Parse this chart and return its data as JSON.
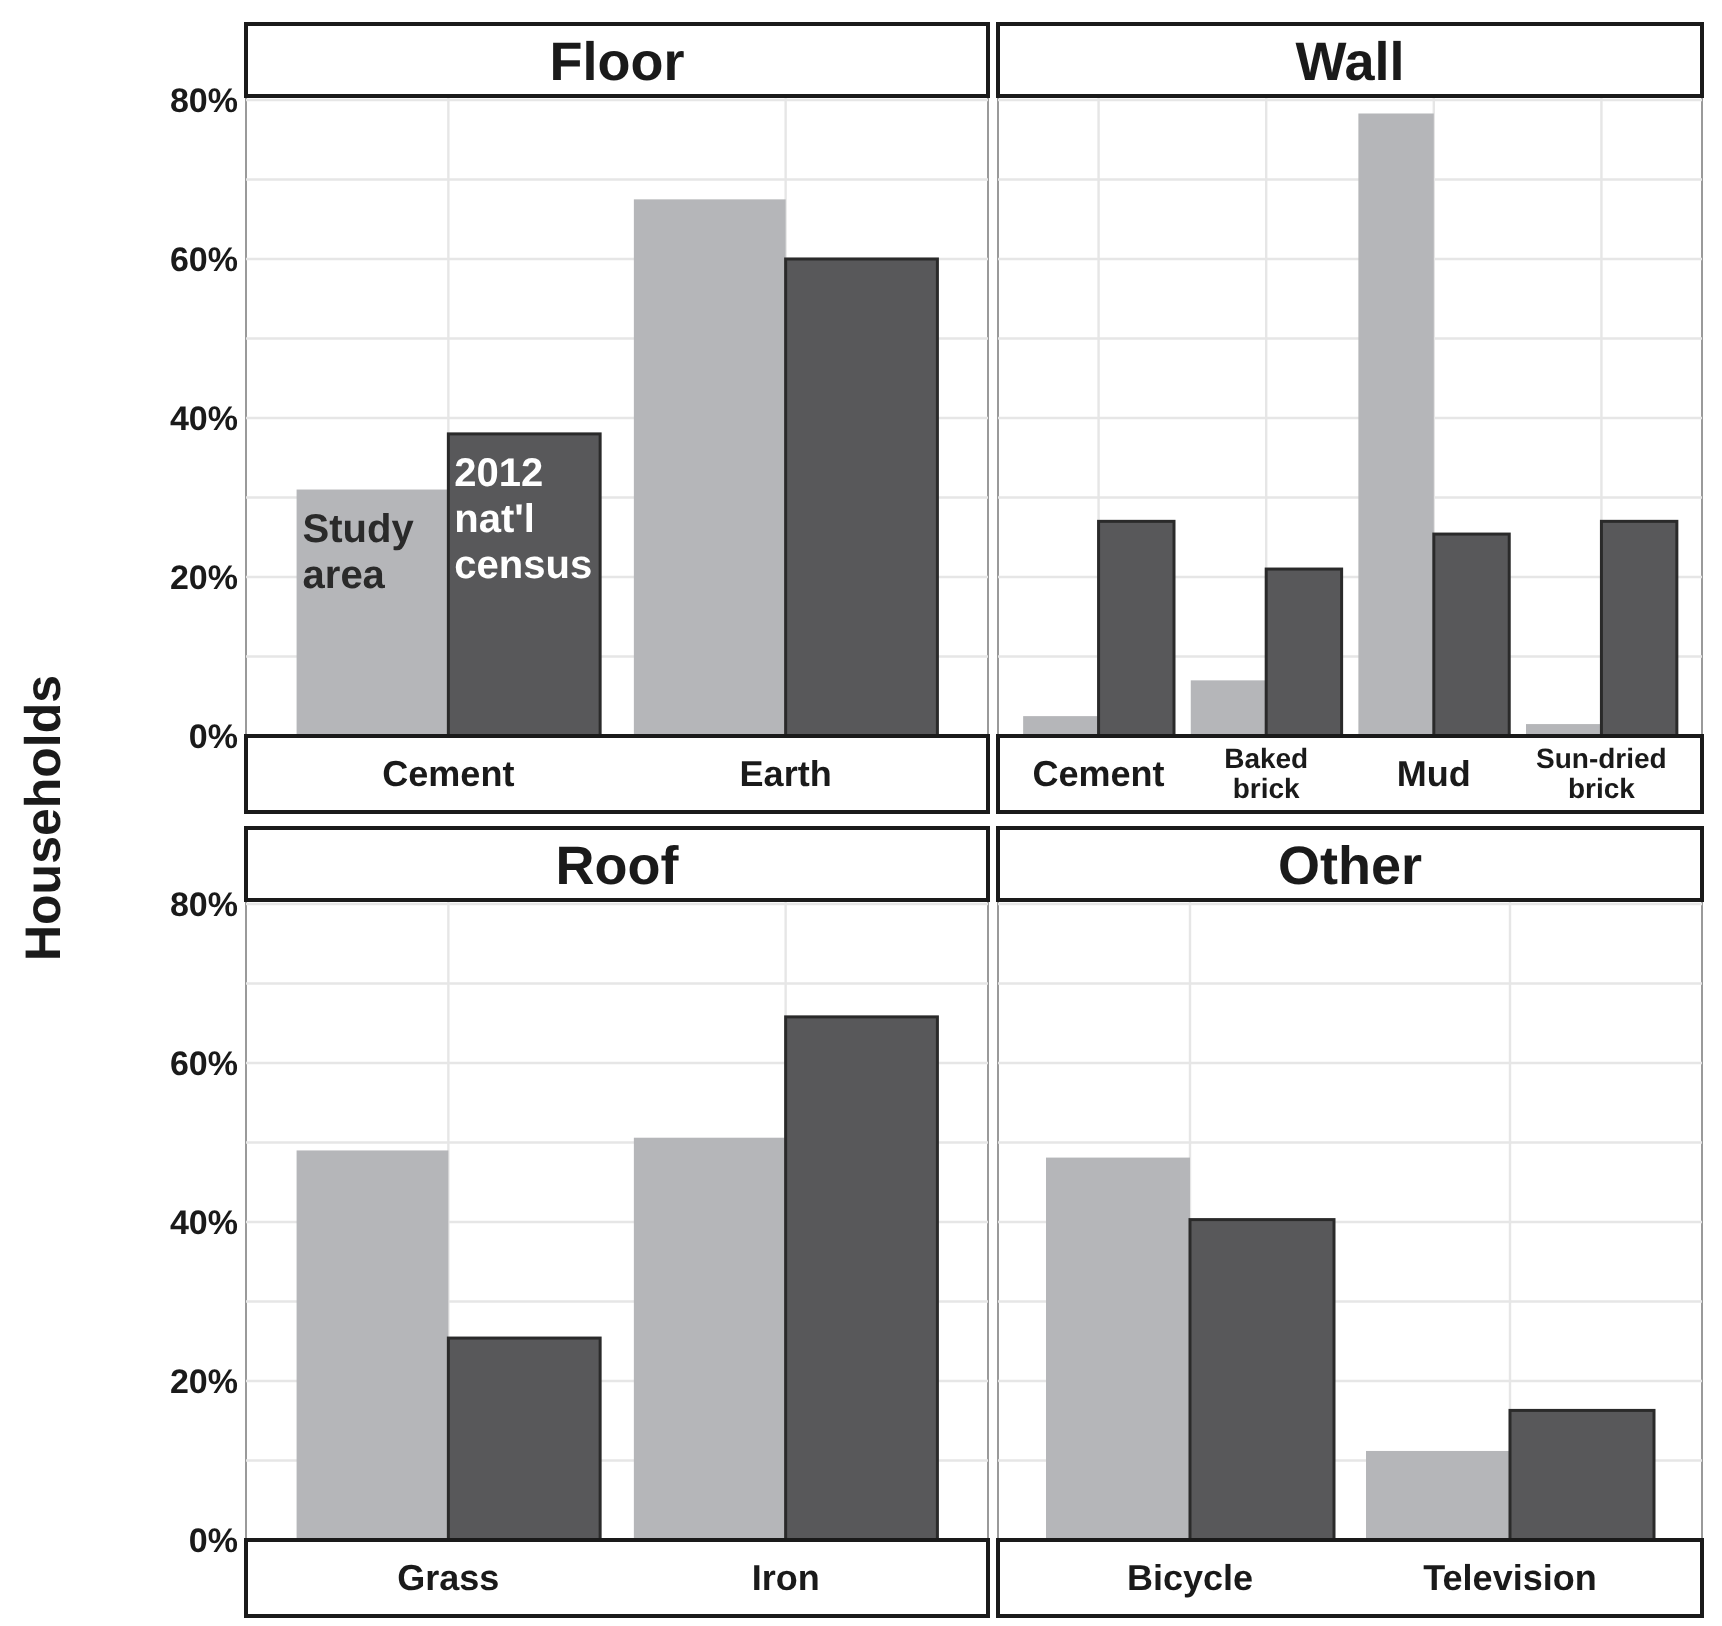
{
  "chart_data": [
    {
      "type": "bar",
      "title": "Floor",
      "ylabel": "Households",
      "categories": [
        "Cement",
        "Earth"
      ],
      "series": [
        {
          "name": "Study area",
          "color": "#b5b6b9",
          "values": [
            31,
            67.5
          ]
        },
        {
          "name": "2012 nat'l census",
          "color": "#58585a",
          "values": [
            38,
            60
          ]
        }
      ],
      "ylim": [
        0,
        80.5
      ],
      "yticks": [
        {
          "value": 0,
          "label": "0%"
        },
        {
          "value": 10,
          "label": null
        },
        {
          "value": 20,
          "label": "20%"
        },
        {
          "value": 30,
          "label": null
        },
        {
          "value": 40,
          "label": "40%"
        },
        {
          "value": 50,
          "label": null
        },
        {
          "value": 60,
          "label": "60%"
        },
        {
          "value": 70,
          "label": null
        },
        {
          "value": 80,
          "label": "80%"
        }
      ],
      "grid": true
    },
    {
      "type": "bar",
      "title": "Wall",
      "categories": [
        "Cement",
        "Baked brick",
        "Mud",
        "Sun-dried brick"
      ],
      "series": [
        {
          "color": "#b5b6b9",
          "values": [
            2.5,
            7,
            78.3,
            1.5
          ]
        },
        {
          "color": "#58585a",
          "values": [
            27,
            21,
            25.4,
            27
          ]
        }
      ],
      "ylim": [
        0,
        80.5
      ],
      "yticks": [
        {
          "value": 0,
          "label": null
        },
        {
          "value": 10,
          "label": null
        },
        {
          "value": 20,
          "label": null
        },
        {
          "value": 30,
          "label": null
        },
        {
          "value": 40,
          "label": null
        },
        {
          "value": 50,
          "label": null
        },
        {
          "value": 60,
          "label": null
        },
        {
          "value": 70,
          "label": null
        },
        {
          "value": 80,
          "label": null
        }
      ],
      "grid": true,
      "tick_labels": "x"
    },
    {
      "type": "bar",
      "title": "Roof",
      "categories": [
        "Grass",
        "Iron"
      ],
      "series": [
        {
          "color": "#b5b6b9",
          "values": [
            49,
            50.6
          ]
        },
        {
          "color": "#58585a",
          "values": [
            25.4,
            65.8
          ]
        }
      ],
      "ylim": [
        0,
        80.5
      ],
      "yticks": [
        {
          "value": 0,
          "label": "0%"
        },
        {
          "value": 10,
          "label": null
        },
        {
          "value": 20,
          "label": "20%"
        },
        {
          "value": 30,
          "label": null
        },
        {
          "value": 40,
          "label": "40%"
        },
        {
          "value": 50,
          "label": null
        },
        {
          "value": 60,
          "label": "60%"
        },
        {
          "value": 70,
          "label": null
        },
        {
          "value": 80,
          "label": "80%"
        }
      ],
      "grid": true
    },
    {
      "type": "bar",
      "title": "Other",
      "categories": [
        "Bicycle",
        "Television"
      ],
      "series": [
        {
          "color": "#b5b6b9",
          "values": [
            48.1,
            11.2
          ]
        },
        {
          "color": "#58585a",
          "values": [
            40.3,
            16.3
          ]
        }
      ],
      "ylim": [
        0,
        80.5
      ],
      "yticks": [
        {
          "value": 0,
          "label": null
        },
        {
          "value": 10,
          "label": null
        },
        {
          "value": 20,
          "label": null
        },
        {
          "value": 30,
          "label": null
        },
        {
          "value": 40,
          "label": null
        },
        {
          "value": 50,
          "label": null
        },
        {
          "value": 60,
          "label": null
        },
        {
          "value": 70,
          "label": null
        },
        {
          "value": 80,
          "label": null
        }
      ],
      "grid": true,
      "tick_labels": "x"
    }
  ]
}
